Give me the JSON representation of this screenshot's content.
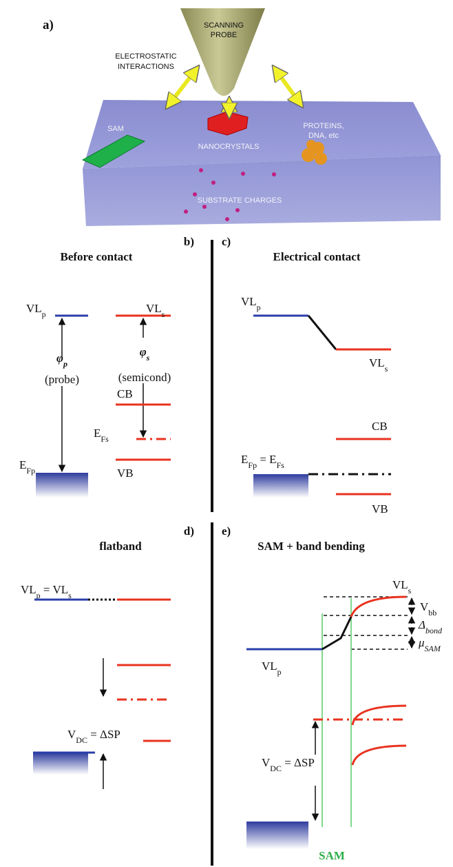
{
  "panel_a": {
    "label": "a)",
    "probe": [
      "SCANNING",
      "PROBE"
    ],
    "interactions": [
      "ELECTROSTATIC",
      "INTERACTIONS"
    ],
    "sam": "SAM",
    "nanocrystals": "NANOCRYSTALS",
    "biomolecules": [
      "PROTEINS,",
      "DNA, etc"
    ],
    "charges": "SUBSTRATE CHARGES"
  },
  "panel_b": {
    "label": "b)",
    "title": "Before contact",
    "vl_p": [
      "VL",
      "p"
    ],
    "vl_s": [
      "VL",
      "s"
    ],
    "phi_p": [
      "φ",
      "p"
    ],
    "probe": "(probe)",
    "phi_s": [
      "φ",
      "s"
    ],
    "semicond": "(semicond)",
    "cb": "CB",
    "ef_s": [
      "E",
      "Fs"
    ],
    "vb": "VB",
    "ef_p": [
      "E",
      "Fp"
    ]
  },
  "panel_c": {
    "label": "c)",
    "title": "Electrical contact",
    "vl_p": [
      "VL",
      "p"
    ],
    "vl_s": [
      "VL",
      "s"
    ],
    "cb": "CB",
    "ef": [
      "E",
      "Fp",
      " = E",
      "Fs"
    ],
    "vb": "VB"
  },
  "panel_d": {
    "label": "d)",
    "title": "flatband",
    "vl": [
      "VL",
      "p",
      " = VL",
      "s"
    ],
    "vdc": [
      "V",
      "DC",
      " = ΔSP"
    ]
  },
  "panel_e": {
    "label": "e)",
    "title": "SAM + band bending",
    "vl_s": [
      "VL",
      "s"
    ],
    "vbb": [
      "V",
      "bb"
    ],
    "dbond": [
      "Δ",
      "bond"
    ],
    "musam": [
      "μ",
      "SAM"
    ],
    "vl_p": [
      "VL",
      "p"
    ],
    "vdc": [
      "V",
      "DC",
      " = ΔSP"
    ],
    "sam": "SAM"
  }
}
